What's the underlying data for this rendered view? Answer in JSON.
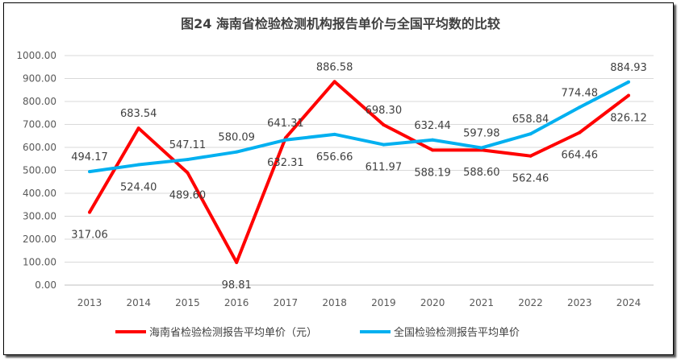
{
  "chart_data": {
    "type": "line",
    "title": "图24  海南省检验检测机构报告单价与全国平均数的比较",
    "categories": [
      "2013",
      "2014",
      "2015",
      "2016",
      "2017",
      "2018",
      "2019",
      "2020",
      "2021",
      "2022",
      "2023",
      "2024"
    ],
    "ylim": [
      0,
      1000
    ],
    "yticks": [
      "0.00",
      "100.00",
      "200.00",
      "300.00",
      "400.00",
      "500.00",
      "600.00",
      "700.00",
      "800.00",
      "900.00",
      "1000.00"
    ],
    "grid": true,
    "legend": "bottom",
    "series": [
      {
        "name": "海南省检验检测报告平均单价（元）",
        "color": "#FF0000",
        "values": [
          317.06,
          683.54,
          489.6,
          98.81,
          641.31,
          886.58,
          698.3,
          588.19,
          588.6,
          562.46,
          664.46,
          826.12
        ],
        "labels": [
          "317.06",
          "683.54",
          "489.60",
          "98.81",
          "641.31",
          "886.58",
          "698.30",
          "588.19",
          "588.60",
          "562.46",
          "664.46",
          "826.12"
        ]
      },
      {
        "name": "全国检验检测报告平均单价",
        "color": "#00B0F0",
        "values": [
          494.17,
          524.4,
          547.11,
          580.09,
          632.31,
          656.66,
          611.97,
          632.44,
          597.98,
          658.84,
          774.48,
          884.93
        ],
        "labels": [
          "494.17",
          "524.40",
          "547.11",
          "580.09",
          "632.31",
          "656.66",
          "611.97",
          "632.44",
          "597.98",
          "658.84",
          "774.48",
          "884.93"
        ]
      }
    ]
  }
}
